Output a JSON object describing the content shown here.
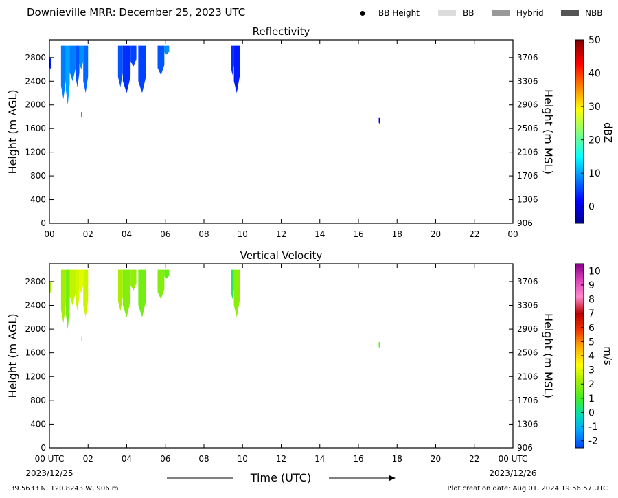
{
  "page": {
    "title": "Downieville MRR:  December 25, 2023 UTC",
    "legend": [
      {
        "label": "BB Height",
        "kind": "dot",
        "color": "#000000"
      },
      {
        "label": "BB",
        "kind": "box",
        "color": "#dcdcdc"
      },
      {
        "label": "Hybrid",
        "kind": "box",
        "color": "#999999"
      },
      {
        "label": "NBB",
        "kind": "box",
        "color": "#555555"
      }
    ],
    "footer_left": "39.5633 N, 120.8243 W, 906 m",
    "footer_right": "Plot creation date: Aug 01, 2024 19:56:57 UTC",
    "time_axis_title": "Time (UTC)",
    "date_start": "2023/12/25",
    "date_end": "2023/12/26",
    "x_ticks": [
      "00 UTC",
      "02",
      "04",
      "06",
      "08",
      "10",
      "12",
      "14",
      "16",
      "18",
      "20",
      "22",
      "00 UTC"
    ],
    "x_ticks_top_panel": [
      "00",
      "02",
      "04",
      "06",
      "08",
      "10",
      "12",
      "14",
      "16",
      "18",
      "20",
      "22",
      "00"
    ]
  },
  "chart_data": [
    {
      "type": "heatmap",
      "title": "Reflectivity",
      "xlabel": "",
      "ylabel": "Height (m AGL)",
      "ylabel_right": "Height (m MSL)",
      "xlim": [
        0,
        24
      ],
      "ylim": [
        0,
        3100
      ],
      "y_ticks": [
        0,
        400,
        800,
        1200,
        1600,
        2000,
        2400,
        2800
      ],
      "y_ticks_right": [
        "906",
        "1306",
        "1706",
        "2106",
        "2506",
        "2906",
        "3306",
        "3706"
      ],
      "colorbar": {
        "label": "dBZ",
        "range": [
          -5,
          50
        ],
        "ticks": [
          "0",
          "10",
          "20",
          "30",
          "40",
          "50"
        ],
        "tick_values": [
          0,
          10,
          20,
          30,
          40,
          50
        ],
        "colormap": "jet"
      },
      "regions": [
        {
          "t_start": 0.0,
          "t_end": 0.1,
          "h_top": 2800,
          "h_bottom": 2600,
          "value": 3
        },
        {
          "t_start": 0.6,
          "t_end": 0.85,
          "h_top": 3000,
          "h_bottom": 2100,
          "value": 8
        },
        {
          "t_start": 0.85,
          "t_end": 1.05,
          "h_top": 3000,
          "h_bottom": 2000,
          "value": 10
        },
        {
          "t_start": 1.05,
          "t_end": 1.35,
          "h_top": 3000,
          "h_bottom": 2400,
          "value": 8
        },
        {
          "t_start": 1.35,
          "t_end": 1.55,
          "h_top": 3000,
          "h_bottom": 2300,
          "value": 6
        },
        {
          "t_start": 1.55,
          "t_end": 1.75,
          "h_top": 3000,
          "h_bottom": 2600,
          "value": 9
        },
        {
          "t_start": 1.65,
          "t_end": 1.7,
          "h_top": 1880,
          "h_bottom": 1780,
          "value": 0
        },
        {
          "t_start": 1.75,
          "t_end": 2.0,
          "h_top": 3000,
          "h_bottom": 2200,
          "value": 7
        },
        {
          "t_start": 3.55,
          "t_end": 3.8,
          "h_top": 3000,
          "h_bottom": 2300,
          "value": 6
        },
        {
          "t_start": 3.8,
          "t_end": 4.2,
          "h_top": 3000,
          "h_bottom": 2200,
          "value": 4
        },
        {
          "t_start": 4.2,
          "t_end": 4.5,
          "h_top": 3000,
          "h_bottom": 2650,
          "value": 5
        },
        {
          "t_start": 4.6,
          "t_end": 5.0,
          "h_top": 3000,
          "h_bottom": 2200,
          "value": 5
        },
        {
          "t_start": 5.6,
          "t_end": 5.95,
          "h_top": 3000,
          "h_bottom": 2500,
          "value": 6
        },
        {
          "t_start": 5.95,
          "t_end": 6.2,
          "h_top": 3000,
          "h_bottom": 2850,
          "value": 9
        },
        {
          "t_start": 9.4,
          "t_end": 9.55,
          "h_top": 3000,
          "h_bottom": 2500,
          "value": 4
        },
        {
          "t_start": 9.55,
          "t_end": 9.85,
          "h_top": 3000,
          "h_bottom": 2200,
          "value": 3
        },
        {
          "t_start": 17.05,
          "t_end": 17.12,
          "h_top": 1780,
          "h_bottom": 1680,
          "value": 1
        }
      ]
    },
    {
      "type": "heatmap",
      "title": "Vertical Velocity",
      "xlabel": "Time (UTC)",
      "ylabel": "Height (m AGL)",
      "ylabel_right": "Height (m MSL)",
      "xlim": [
        0,
        24
      ],
      "ylim": [
        0,
        3100
      ],
      "y_ticks": [
        0,
        400,
        800,
        1200,
        1600,
        2000,
        2400,
        2800
      ],
      "y_ticks_right": [
        "906",
        "1306",
        "1706",
        "2106",
        "2506",
        "2906",
        "3306",
        "3706"
      ],
      "colorbar": {
        "label": "m/s",
        "range": [
          -2.5,
          10.5
        ],
        "ticks": [
          "-2",
          "-1",
          "0",
          "1",
          "2",
          "3",
          "4",
          "5",
          "6",
          "7",
          "8",
          "9",
          "10"
        ],
        "tick_values": [
          -2,
          -1,
          0,
          1,
          2,
          3,
          4,
          5,
          6,
          7,
          8,
          9,
          10
        ],
        "colormap": "velocity"
      },
      "regions": [
        {
          "t_start": 0.0,
          "t_end": 0.1,
          "h_top": 2800,
          "h_bottom": 2600,
          "value": 2.4
        },
        {
          "t_start": 0.6,
          "t_end": 0.85,
          "h_top": 3000,
          "h_bottom": 2100,
          "value": 2.2
        },
        {
          "t_start": 0.85,
          "t_end": 1.05,
          "h_top": 3000,
          "h_bottom": 2000,
          "value": 1.6
        },
        {
          "t_start": 1.05,
          "t_end": 1.35,
          "h_top": 3000,
          "h_bottom": 2400,
          "value": 2.6
        },
        {
          "t_start": 1.35,
          "t_end": 1.55,
          "h_top": 3000,
          "h_bottom": 2300,
          "value": 2.8
        },
        {
          "t_start": 1.55,
          "t_end": 1.75,
          "h_top": 3000,
          "h_bottom": 2600,
          "value": 3.0
        },
        {
          "t_start": 1.65,
          "t_end": 1.7,
          "h_top": 1880,
          "h_bottom": 1780,
          "value": 2.5
        },
        {
          "t_start": 1.75,
          "t_end": 2.0,
          "h_top": 3000,
          "h_bottom": 2200,
          "value": 2.7
        },
        {
          "t_start": 3.55,
          "t_end": 3.8,
          "h_top": 3000,
          "h_bottom": 2300,
          "value": 2.3
        },
        {
          "t_start": 3.8,
          "t_end": 4.2,
          "h_top": 3000,
          "h_bottom": 2200,
          "value": 1.8
        },
        {
          "t_start": 4.2,
          "t_end": 4.5,
          "h_top": 3000,
          "h_bottom": 2650,
          "value": 2.0
        },
        {
          "t_start": 4.6,
          "t_end": 5.0,
          "h_top": 3000,
          "h_bottom": 2200,
          "value": 1.6
        },
        {
          "t_start": 5.6,
          "t_end": 5.95,
          "h_top": 3000,
          "h_bottom": 2500,
          "value": 1.8
        },
        {
          "t_start": 5.95,
          "t_end": 6.2,
          "h_top": 3000,
          "h_bottom": 2850,
          "value": 1.4
        },
        {
          "t_start": 9.4,
          "t_end": 9.55,
          "h_top": 3000,
          "h_bottom": 2500,
          "value": 0.5
        },
        {
          "t_start": 9.55,
          "t_end": 9.85,
          "h_top": 3000,
          "h_bottom": 2200,
          "value": 1.9
        },
        {
          "t_start": 17.05,
          "t_end": 17.12,
          "h_top": 1780,
          "h_bottom": 1680,
          "value": 1.4
        }
      ]
    }
  ]
}
